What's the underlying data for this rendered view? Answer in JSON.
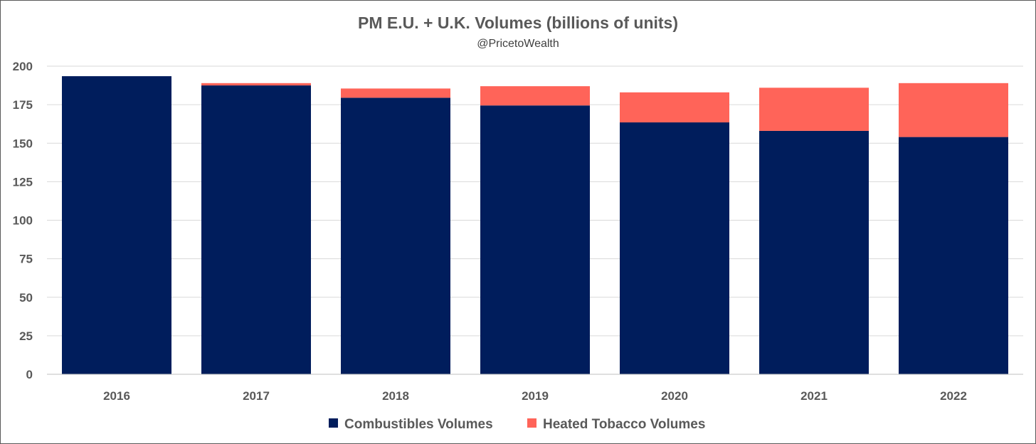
{
  "chart_data": {
    "type": "bar",
    "stacked": true,
    "title": "PM E.U. + U.K. Volumes (billions of units)",
    "subtitle": "@PricetoWealth",
    "categories": [
      "2016",
      "2017",
      "2018",
      "2019",
      "2020",
      "2021",
      "2022"
    ],
    "series": [
      {
        "name": "Combustibles Volumes",
        "color": "#001d5c",
        "values": [
          193.5,
          187.5,
          179.5,
          174.5,
          163.5,
          158.0,
          154.0
        ]
      },
      {
        "name": "Heated Tobacco Volumes",
        "color": "#ff6459",
        "values": [
          0,
          1.5,
          6.0,
          12.5,
          19.5,
          28.0,
          35.0
        ]
      }
    ],
    "yticks": [
      "0",
      "25",
      "50",
      "75",
      "100",
      "125",
      "150",
      "175",
      "200"
    ],
    "ylim": [
      0,
      200
    ],
    "grid": true,
    "legend_position": "bottom"
  }
}
